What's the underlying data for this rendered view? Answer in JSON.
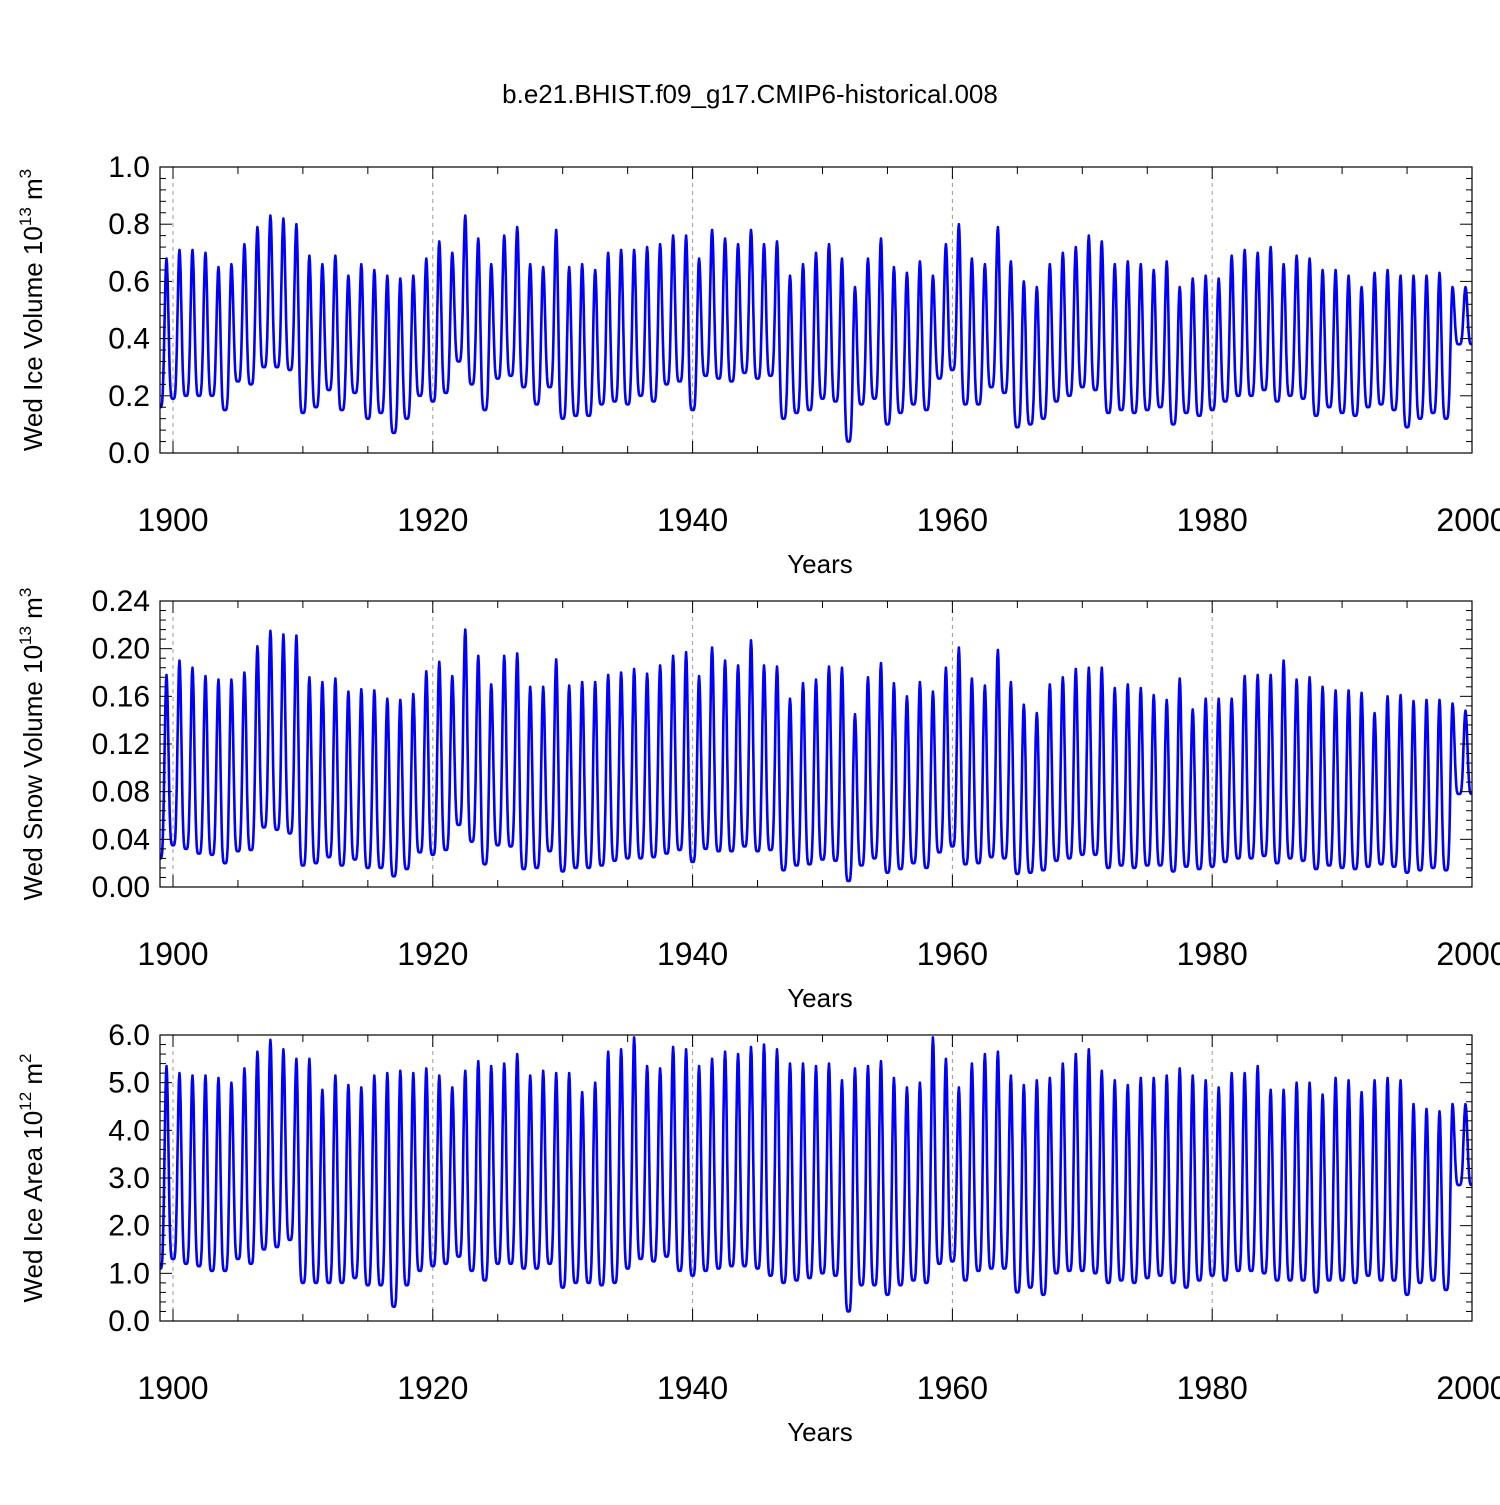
{
  "title": "b.e21.BHIST.f09_g17.CMIP6-historical.008",
  "colors": {
    "series": "#0000ff",
    "frame": "#000000",
    "grid": "#9a9a9a"
  },
  "chart_data": [
    {
      "type": "line",
      "ylabel": "Wed Ice Volume 10",
      "ylabel_exp": "13",
      "ylabel_unit": " m",
      "ylabel_unit_exp": "3",
      "xlabel": "Years",
      "xlim": [
        1899.0,
        2000.0
      ],
      "ylim": [
        0.0,
        1.0
      ],
      "yticks": [
        0.0,
        0.2,
        0.4,
        0.6,
        0.8,
        1.0
      ],
      "ytick_labels": [
        "0.0",
        "0.2",
        "0.4",
        "0.6",
        "0.8",
        "1.0"
      ],
      "xticks": [
        1900,
        1920,
        1940,
        1960,
        1980,
        2000
      ],
      "xtick_labels": [
        "1900",
        "1920",
        "1940",
        "1960",
        "1980",
        "2000"
      ],
      "start_year": 1899,
      "annual_max": [
        0.68,
        0.71,
        0.71,
        0.7,
        0.65,
        0.66,
        0.73,
        0.79,
        0.83,
        0.82,
        0.8,
        0.69,
        0.66,
        0.69,
        0.62,
        0.66,
        0.64,
        0.62,
        0.61,
        0.62,
        0.68,
        0.74,
        0.7,
        0.83,
        0.75,
        0.66,
        0.76,
        0.79,
        0.66,
        0.65,
        0.78,
        0.65,
        0.66,
        0.64,
        0.7,
        0.71,
        0.71,
        0.72,
        0.73,
        0.76,
        0.76,
        0.68,
        0.78,
        0.75,
        0.73,
        0.78,
        0.73,
        0.74,
        0.62,
        0.66,
        0.7,
        0.73,
        0.68,
        0.58,
        0.68,
        0.75,
        0.65,
        0.63,
        0.67,
        0.62,
        0.73,
        0.8,
        0.68,
        0.66,
        0.79,
        0.67,
        0.6,
        0.58,
        0.66,
        0.7,
        0.72,
        0.76,
        0.74,
        0.66,
        0.67,
        0.66,
        0.64,
        0.67,
        0.58,
        0.61,
        0.62,
        0.61,
        0.69,
        0.71,
        0.7,
        0.72,
        0.66,
        0.69,
        0.68,
        0.64,
        0.64,
        0.62,
        0.58,
        0.63,
        0.64,
        0.62,
        0.62,
        0.62,
        0.63,
        0.58,
        0.58
      ],
      "annual_min": [
        0.16,
        0.19,
        0.2,
        0.2,
        0.2,
        0.15,
        0.25,
        0.24,
        0.3,
        0.3,
        0.29,
        0.14,
        0.16,
        0.22,
        0.15,
        0.21,
        0.12,
        0.14,
        0.07,
        0.12,
        0.2,
        0.18,
        0.21,
        0.32,
        0.24,
        0.15,
        0.26,
        0.27,
        0.23,
        0.17,
        0.23,
        0.12,
        0.13,
        0.13,
        0.17,
        0.18,
        0.17,
        0.2,
        0.18,
        0.24,
        0.25,
        0.15,
        0.27,
        0.26,
        0.25,
        0.28,
        0.26,
        0.27,
        0.12,
        0.14,
        0.15,
        0.19,
        0.18,
        0.04,
        0.17,
        0.19,
        0.1,
        0.14,
        0.17,
        0.15,
        0.26,
        0.29,
        0.17,
        0.17,
        0.23,
        0.21,
        0.09,
        0.1,
        0.12,
        0.18,
        0.2,
        0.23,
        0.22,
        0.14,
        0.15,
        0.14,
        0.15,
        0.16,
        0.1,
        0.14,
        0.13,
        0.15,
        0.18,
        0.2,
        0.2,
        0.22,
        0.18,
        0.2,
        0.19,
        0.13,
        0.16,
        0.14,
        0.13,
        0.16,
        0.17,
        0.15,
        0.09,
        0.12,
        0.14,
        0.12,
        0.38
      ]
    },
    {
      "type": "line",
      "ylabel": "Wed Snow Volume 10",
      "ylabel_exp": "13",
      "ylabel_unit": " m",
      "ylabel_unit_exp": "3",
      "xlabel": "Years",
      "xlim": [
        1899.0,
        2000.0
      ],
      "ylim": [
        0.0,
        0.24
      ],
      "yticks": [
        0.0,
        0.04,
        0.08,
        0.12,
        0.16,
        0.2,
        0.24
      ],
      "ytick_labels": [
        "0.00",
        "0.04",
        "0.08",
        "0.12",
        "0.16",
        "0.20",
        "0.24"
      ],
      "xticks": [
        1900,
        1920,
        1940,
        1960,
        1980,
        2000
      ],
      "xtick_labels": [
        "1900",
        "1920",
        "1940",
        "1960",
        "1980",
        "2000"
      ],
      "start_year": 1899,
      "annual_max": [
        0.178,
        0.19,
        0.184,
        0.177,
        0.174,
        0.174,
        0.18,
        0.202,
        0.215,
        0.212,
        0.211,
        0.176,
        0.172,
        0.175,
        0.164,
        0.166,
        0.165,
        0.158,
        0.157,
        0.162,
        0.181,
        0.189,
        0.177,
        0.216,
        0.194,
        0.17,
        0.194,
        0.196,
        0.168,
        0.168,
        0.191,
        0.169,
        0.172,
        0.172,
        0.178,
        0.18,
        0.183,
        0.179,
        0.186,
        0.194,
        0.197,
        0.177,
        0.201,
        0.19,
        0.186,
        0.207,
        0.186,
        0.185,
        0.158,
        0.171,
        0.174,
        0.185,
        0.184,
        0.145,
        0.176,
        0.188,
        0.171,
        0.16,
        0.172,
        0.164,
        0.184,
        0.201,
        0.175,
        0.169,
        0.199,
        0.172,
        0.153,
        0.146,
        0.17,
        0.176,
        0.183,
        0.184,
        0.184,
        0.167,
        0.17,
        0.167,
        0.161,
        0.157,
        0.175,
        0.149,
        0.158,
        0.158,
        0.158,
        0.177,
        0.178,
        0.178,
        0.19,
        0.174,
        0.176,
        0.168,
        0.165,
        0.165,
        0.163,
        0.146,
        0.16,
        0.161,
        0.156,
        0.157,
        0.157,
        0.154,
        0.148
      ],
      "annual_min": [
        0.024,
        0.035,
        0.032,
        0.028,
        0.027,
        0.02,
        0.03,
        0.031,
        0.05,
        0.048,
        0.045,
        0.018,
        0.02,
        0.025,
        0.018,
        0.023,
        0.016,
        0.016,
        0.009,
        0.015,
        0.029,
        0.027,
        0.031,
        0.052,
        0.038,
        0.019,
        0.035,
        0.034,
        0.015,
        0.016,
        0.03,
        0.013,
        0.016,
        0.016,
        0.018,
        0.022,
        0.024,
        0.024,
        0.025,
        0.028,
        0.031,
        0.021,
        0.032,
        0.03,
        0.03,
        0.034,
        0.03,
        0.031,
        0.014,
        0.018,
        0.019,
        0.023,
        0.022,
        0.005,
        0.018,
        0.024,
        0.012,
        0.015,
        0.02,
        0.016,
        0.029,
        0.034,
        0.019,
        0.02,
        0.025,
        0.024,
        0.011,
        0.012,
        0.014,
        0.022,
        0.024,
        0.027,
        0.027,
        0.016,
        0.018,
        0.016,
        0.018,
        0.018,
        0.013,
        0.017,
        0.015,
        0.017,
        0.021,
        0.024,
        0.024,
        0.026,
        0.02,
        0.024,
        0.022,
        0.015,
        0.018,
        0.016,
        0.015,
        0.017,
        0.019,
        0.017,
        0.012,
        0.014,
        0.016,
        0.014,
        0.078
      ]
    },
    {
      "type": "line",
      "ylabel": "Wed Ice Area 10",
      "ylabel_exp": "12",
      "ylabel_unit": " m",
      "ylabel_unit_exp": "2",
      "xlabel": "Years",
      "xlim": [
        1899.0,
        2000.0
      ],
      "ylim": [
        0.0,
        6.0
      ],
      "yticks": [
        0.0,
        1.0,
        2.0,
        3.0,
        4.0,
        5.0,
        6.0
      ],
      "ytick_labels": [
        "0.0",
        "1.0",
        "2.0",
        "3.0",
        "4.0",
        "5.0",
        "6.0"
      ],
      "xticks": [
        1900,
        1920,
        1940,
        1960,
        1980,
        2000
      ],
      "xtick_labels": [
        "1900",
        "1920",
        "1940",
        "1960",
        "1980",
        "2000"
      ],
      "start_year": 1899,
      "annual_max": [
        5.35,
        5.2,
        5.15,
        5.15,
        5.1,
        5.0,
        5.3,
        5.65,
        5.9,
        5.7,
        5.5,
        5.5,
        4.85,
        5.15,
        4.95,
        4.9,
        5.15,
        5.2,
        5.25,
        5.2,
        5.3,
        5.15,
        4.9,
        5.25,
        5.45,
        5.35,
        5.4,
        5.6,
        5.15,
        5.25,
        5.2,
        5.2,
        4.8,
        5.0,
        5.65,
        5.7,
        5.95,
        5.35,
        5.3,
        5.75,
        5.7,
        5.35,
        5.5,
        5.65,
        5.6,
        5.75,
        5.8,
        5.7,
        5.4,
        5.4,
        5.35,
        5.4,
        5.05,
        5.3,
        5.35,
        5.45,
        5.1,
        4.9,
        5.0,
        5.95,
        5.5,
        4.9,
        5.4,
        5.6,
        5.65,
        5.15,
        4.95,
        5.05,
        5.1,
        5.4,
        5.6,
        5.7,
        5.25,
        5.05,
        4.95,
        5.1,
        5.1,
        5.15,
        5.3,
        5.15,
        5.05,
        4.9,
        5.2,
        5.2,
        5.35,
        4.85,
        4.85,
        5.0,
        5.0,
        4.75,
        5.1,
        5.05,
        4.8,
        5.05,
        5.1,
        5.05,
        4.55,
        4.45,
        4.4,
        4.55,
        4.55
      ],
      "annual_min": [
        1.1,
        1.3,
        1.2,
        1.15,
        1.05,
        1.05,
        1.3,
        1.2,
        1.5,
        1.55,
        1.7,
        0.8,
        0.8,
        0.8,
        0.8,
        0.9,
        0.75,
        0.75,
        0.3,
        0.75,
        1.05,
        1.15,
        1.2,
        1.35,
        1.05,
        0.85,
        1.2,
        1.2,
        1.1,
        1.1,
        1.2,
        0.7,
        0.8,
        0.8,
        0.75,
        0.8,
        1.1,
        1.3,
        1.25,
        1.35,
        1.05,
        0.95,
        1.05,
        1.1,
        1.15,
        1.15,
        1.1,
        0.95,
        0.8,
        0.85,
        0.9,
        1.0,
        0.95,
        0.2,
        0.75,
        0.75,
        0.55,
        0.75,
        0.85,
        0.8,
        1.2,
        1.25,
        0.85,
        1.05,
        1.1,
        1.1,
        0.6,
        0.7,
        0.55,
        1.0,
        1.05,
        1.05,
        1.0,
        0.8,
        0.85,
        0.8,
        0.9,
        0.95,
        0.8,
        0.7,
        0.85,
        0.95,
        0.85,
        1.05,
        1.05,
        1.0,
        0.85,
        0.85,
        0.85,
        0.6,
        0.85,
        0.85,
        0.8,
        0.95,
        0.85,
        0.85,
        0.55,
        0.8,
        0.85,
        0.65,
        2.85
      ]
    }
  ]
}
